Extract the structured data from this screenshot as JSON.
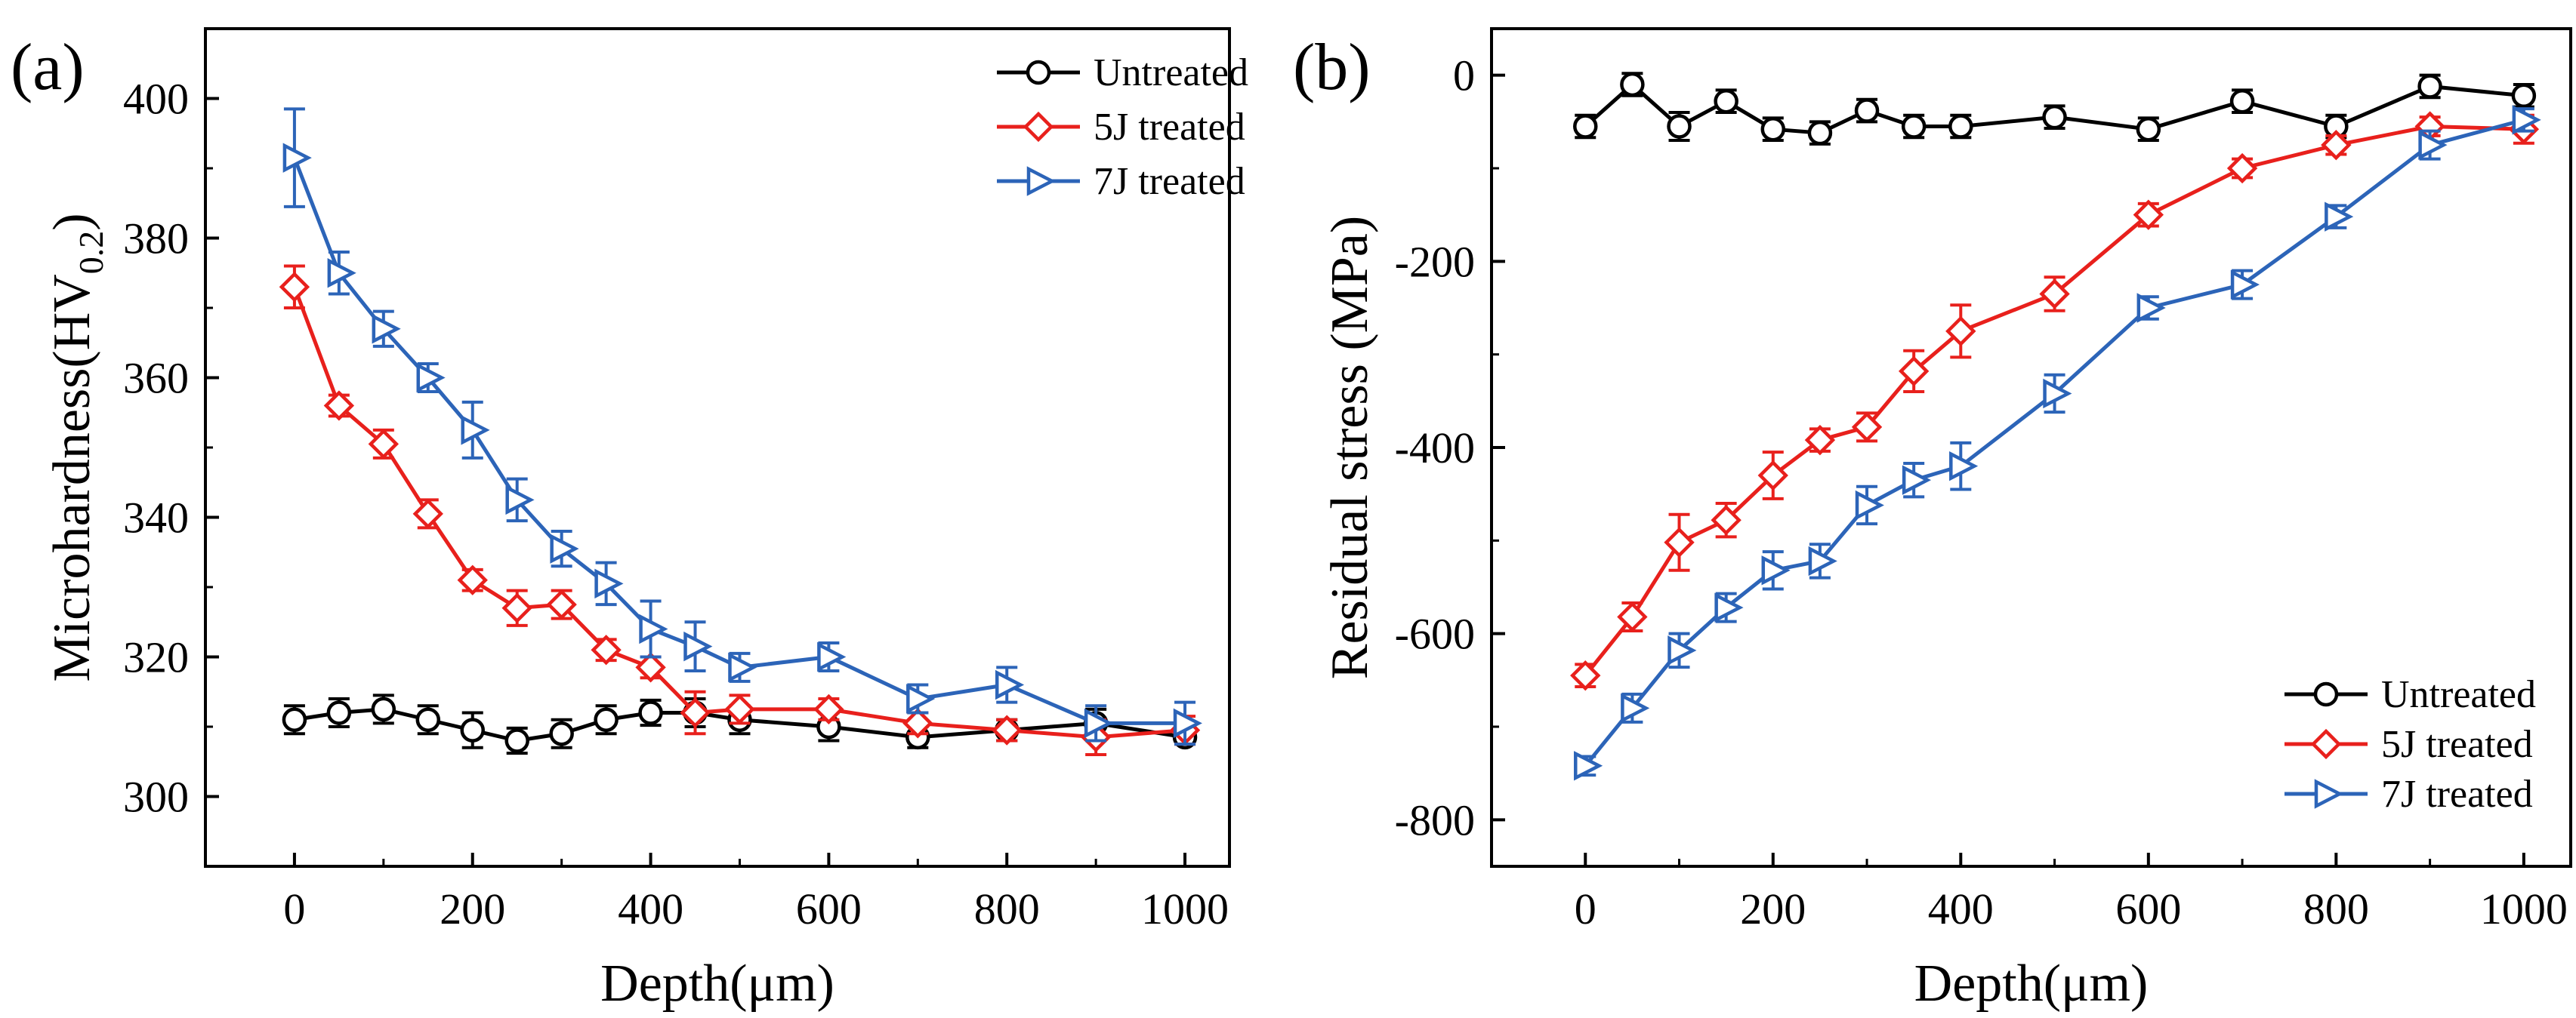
{
  "figure": {
    "panel_a_label": "(a)",
    "panel_b_label": "(b)"
  },
  "chart_data": [
    {
      "type": "line",
      "panel": "(a)",
      "title": "",
      "xlabel": "Depth(μm)",
      "ylabel_main": "Microhardness(HV",
      "ylabel_sub": "0.2",
      "ylabel_tail": ")",
      "xlim": [
        -100,
        1050
      ],
      "ylim": [
        290,
        410
      ],
      "xticks": [
        0,
        200,
        400,
        600,
        800,
        1000
      ],
      "yticks": [
        300,
        320,
        340,
        360,
        380,
        400
      ],
      "legend_position": "top-right",
      "series": [
        {
          "name": "Untreated",
          "color": "#000000",
          "marker": "circle",
          "x": [
            0,
            50,
            100,
            150,
            200,
            250,
            300,
            350,
            400,
            450,
            500,
            600,
            700,
            800,
            900,
            1000
          ],
          "y": [
            311,
            312,
            312.5,
            311,
            309.5,
            308,
            309,
            311,
            312,
            312,
            311,
            310,
            308.5,
            309.5,
            310.5,
            308.5
          ],
          "err": [
            2,
            2,
            2,
            2,
            2.5,
            1.8,
            2,
            2,
            1.8,
            2,
            2,
            2,
            1.5,
            1.5,
            2,
            1
          ]
        },
        {
          "name": "5J treated",
          "color": "#e8201c",
          "marker": "diamond",
          "x": [
            0,
            50,
            100,
            150,
            200,
            250,
            300,
            350,
            400,
            450,
            500,
            600,
            700,
            800,
            900,
            1000
          ],
          "y": [
            373,
            356,
            350.5,
            340.5,
            331,
            327,
            327.5,
            321,
            318.5,
            312,
            312.5,
            312.5,
            310.5,
            309.5,
            308.5,
            309.5
          ],
          "err": [
            3,
            1.5,
            2,
            2,
            1.5,
            2.5,
            2,
            1.5,
            1.5,
            3,
            2,
            1.5,
            1.5,
            1.5,
            2.5,
            2
          ]
        },
        {
          "name": "7J treated",
          "color": "#2c64b8",
          "marker": "triangle-right",
          "x": [
            0,
            50,
            100,
            150,
            200,
            250,
            300,
            350,
            400,
            450,
            500,
            600,
            700,
            800,
            900,
            1000
          ],
          "y": [
            391.5,
            375,
            367,
            360,
            352.5,
            342.5,
            335.5,
            330.5,
            324,
            321.5,
            318.5,
            320,
            314,
            316,
            310.5,
            310.5
          ],
          "err": [
            7,
            3,
            2.5,
            2,
            4,
            3,
            2.5,
            3,
            4,
            3.5,
            2,
            2,
            2,
            2.5,
            2.5,
            3
          ]
        }
      ]
    },
    {
      "type": "line",
      "panel": "(b)",
      "title": "",
      "xlabel": "Depth(μm)",
      "ylabel": "Residual stress (MPa)",
      "xlim": [
        -100,
        1050
      ],
      "ylim": [
        -850,
        50
      ],
      "xticks": [
        0,
        200,
        400,
        600,
        800,
        1000
      ],
      "yticks": [
        0,
        -200,
        -400,
        -600,
        -800
      ],
      "legend_position": "bottom-right",
      "series": [
        {
          "name": "Untreated",
          "color": "#000000",
          "marker": "circle",
          "x": [
            0,
            50,
            100,
            150,
            200,
            250,
            300,
            350,
            400,
            500,
            600,
            700,
            800,
            900,
            1000
          ],
          "y": [
            -55,
            -10,
            -55,
            -28,
            -58,
            -62,
            -38,
            -55,
            -55,
            -45,
            -58,
            -28,
            -55,
            -12,
            -22
          ],
          "err": [
            12,
            12,
            15,
            12,
            12,
            12,
            12,
            12,
            12,
            12,
            12,
            12,
            12,
            12,
            12
          ]
        },
        {
          "name": "5J treated",
          "color": "#e8201c",
          "marker": "diamond",
          "x": [
            0,
            50,
            100,
            150,
            200,
            250,
            300,
            350,
            400,
            500,
            600,
            700,
            800,
            900,
            1000
          ],
          "y": [
            -645,
            -582,
            -502,
            -478,
            -430,
            -392,
            -378,
            -318,
            -275,
            -235,
            -150,
            -100,
            -75,
            -55,
            -58
          ],
          "err": [
            12,
            15,
            30,
            18,
            25,
            12,
            15,
            22,
            28,
            18,
            12,
            10,
            10,
            10,
            15
          ]
        },
        {
          "name": "7J treated",
          "color": "#2c64b8",
          "marker": "triangle-right",
          "x": [
            0,
            50,
            100,
            150,
            200,
            250,
            300,
            350,
            400,
            500,
            600,
            700,
            800,
            900,
            1000
          ],
          "y": [
            -742,
            -680,
            -618,
            -572,
            -532,
            -522,
            -462,
            -435,
            -420,
            -342,
            -250,
            -225,
            -152,
            -75,
            -48
          ],
          "err": [
            10,
            15,
            18,
            15,
            20,
            18,
            20,
            18,
            25,
            20,
            12,
            15,
            12,
            15,
            12
          ]
        }
      ]
    }
  ]
}
